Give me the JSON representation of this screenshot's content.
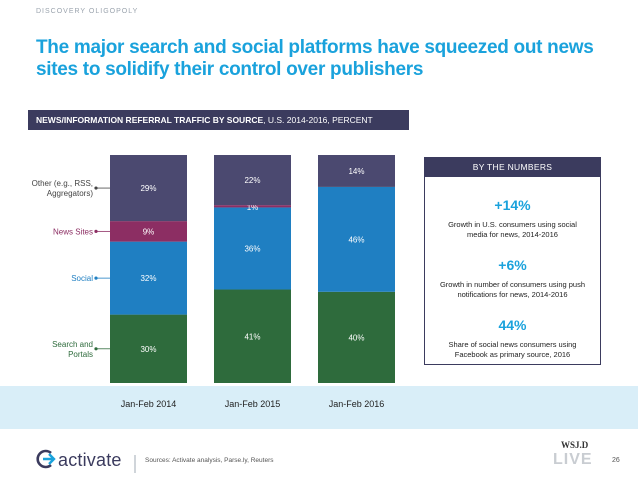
{
  "header": {
    "section": "DISCOVERY OLIGOPOLY",
    "title_line1": "The major search and social platforms have squeezed out news",
    "title_line2": "sites to solidify their control over publishers"
  },
  "chart_banner": {
    "bold": "NEWS/INFORMATION REFERRAL TRAFFIC BY SOURCE",
    "rest": ", U.S. 2014-2016, PERCENT"
  },
  "chart_data": {
    "type": "bar",
    "stacked": true,
    "categories": [
      "Jan-Feb 2014",
      "Jan-Feb 2015",
      "Jan-Feb 2016"
    ],
    "series": [
      {
        "name": "Search and Portals",
        "values": [
          30,
          41,
          40
        ],
        "labels": [
          "30%",
          "41%",
          "40%"
        ],
        "color": "#2e6b3c"
      },
      {
        "name": "Social",
        "values": [
          32,
          36,
          46
        ],
        "labels": [
          "32%",
          "36%",
          "46%"
        ],
        "color": "#1f7fc2"
      },
      {
        "name": "News Sites",
        "values": [
          9,
          1,
          0
        ],
        "labels": [
          "9%",
          "1%",
          ""
        ],
        "color": "#8c2e63"
      },
      {
        "name": "Other (e.g., RSS, Aggregators)",
        "values": [
          29,
          22,
          14
        ],
        "labels": [
          "29%",
          "22%",
          "14%"
        ],
        "color": "#4b4970"
      }
    ],
    "legend_labels": [
      {
        "lines": [
          "Other (e.g., RSS,",
          "Aggregators)"
        ],
        "color": "#444444",
        "series_index": 3
      },
      {
        "lines": [
          "News Sites"
        ],
        "color": "#8c2e63",
        "series_index": 2
      },
      {
        "lines": [
          "Social"
        ],
        "color": "#1f7fc2",
        "series_index": 1
      },
      {
        "lines": [
          "Search and",
          "Portals"
        ],
        "color": "#2e6b3c",
        "series_index": 0
      }
    ],
    "legend_placement": "left",
    "ylim": [
      0,
      100
    ],
    "grid": false
  },
  "by_the_numbers": {
    "title": "BY THE NUMBERS",
    "stats": [
      {
        "value": "+14%",
        "desc": "Growth in U.S. consumers using social media for news, 2014-2016"
      },
      {
        "value": "+6%",
        "desc": "Growth in number of consumers using push notifications for news, 2014-2016"
      },
      {
        "value": "44%",
        "desc": "Share of social news consumers using Facebook as primary source, 2016"
      }
    ]
  },
  "footer": {
    "logo": "activate",
    "sources": "Sources: Activate analysis, Parse.ly, Reuters",
    "wsj": "WSJ.D",
    "live": "LIVE",
    "page": "26"
  },
  "colors": {
    "accent": "#1aa2dc",
    "navy": "#3b3b5e",
    "band": "#d9eef8"
  }
}
